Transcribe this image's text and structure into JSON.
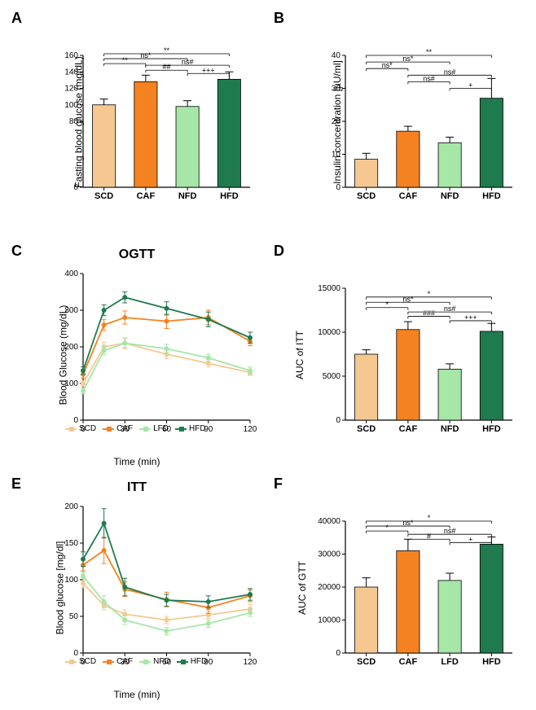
{
  "colors": {
    "SCD": "#f5c892",
    "CAF": "#f58220",
    "NFD": "#a6e6a6",
    "LFD": "#a6e6a6",
    "HFD": "#1f7a4d",
    "axis": "#000000",
    "bg": "#ffffff"
  },
  "categories": [
    "SCD",
    "CAF",
    "NFD",
    "HFD"
  ],
  "categories_F": [
    "SCD",
    "CAF",
    "LFD",
    "HFD"
  ],
  "panelA": {
    "label": "A",
    "ylabel": "Fasting blood glucose (mg/dL)",
    "ylim": [
      0,
      160
    ],
    "yticks": [
      0,
      80,
      100,
      120,
      140,
      160
    ],
    "values": [
      100,
      128,
      98,
      131
    ],
    "errors": [
      7,
      8,
      7,
      9
    ],
    "sig": [
      {
        "from": 0,
        "to": 1,
        "y": 150,
        "text": "**"
      },
      {
        "from": 0,
        "to": 2,
        "y": 156,
        "text": "ns*"
      },
      {
        "from": 0,
        "to": 3,
        "y": 162,
        "text": "**"
      },
      {
        "from": 1,
        "to": 2,
        "y": 142,
        "text": "##"
      },
      {
        "from": 1,
        "to": 3,
        "y": 148,
        "text": "ns#"
      },
      {
        "from": 2,
        "to": 3,
        "y": 138,
        "text": "+++"
      }
    ]
  },
  "panelB": {
    "label": "B",
    "ylabel": "Insulin concentration [µU/ml]",
    "ylim": [
      0,
      40
    ],
    "yticks": [
      0,
      10,
      20,
      30,
      40
    ],
    "values": [
      8.5,
      17,
      13.5,
      27
    ],
    "errors": [
      1.8,
      1.5,
      1.7,
      6
    ],
    "sig": [
      {
        "from": 0,
        "to": 1,
        "y": 36,
        "text": "ns*"
      },
      {
        "from": 0,
        "to": 2,
        "y": 38,
        "text": "ns*"
      },
      {
        "from": 0,
        "to": 3,
        "y": 40,
        "text": "**"
      },
      {
        "from": 1,
        "to": 2,
        "y": 32,
        "text": "ns#"
      },
      {
        "from": 1,
        "to": 3,
        "y": 34,
        "text": "ns#"
      },
      {
        "from": 2,
        "to": 3,
        "y": 30,
        "text": "+"
      }
    ]
  },
  "panelC": {
    "label": "C",
    "title": "OGTT",
    "ylabel": "Blood Glucose (mg/dL)",
    "xlabel": "Time (min)",
    "xlim": [
      0,
      120
    ],
    "xticks": [
      0,
      30,
      60,
      90,
      120
    ],
    "ylim": [
      0,
      400
    ],
    "yticks": [
      0,
      100,
      200,
      300,
      400
    ],
    "series": {
      "SCD": {
        "x": [
          0,
          15,
          30,
          60,
          90,
          120
        ],
        "y": [
          100,
          200,
          210,
          180,
          155,
          130
        ],
        "err": [
          8,
          12,
          15,
          12,
          10,
          8
        ]
      },
      "CAF": {
        "x": [
          0,
          15,
          30,
          60,
          90,
          120
        ],
        "y": [
          125,
          260,
          280,
          270,
          280,
          215
        ],
        "err": [
          10,
          15,
          18,
          20,
          20,
          12
        ]
      },
      "LFD": {
        "x": [
          0,
          15,
          30,
          60,
          90,
          120
        ],
        "y": [
          80,
          190,
          210,
          195,
          170,
          135
        ],
        "err": [
          8,
          12,
          12,
          12,
          10,
          10
        ]
      },
      "HFD": {
        "x": [
          0,
          15,
          30,
          60,
          90,
          120
        ],
        "y": [
          135,
          300,
          335,
          305,
          275,
          225
        ],
        "err": [
          10,
          15,
          15,
          18,
          20,
          15
        ]
      }
    },
    "legend": [
      "SCD",
      "CAF",
      "LFD",
      "HFD"
    ]
  },
  "panelD": {
    "label": "D",
    "ylabel": "AUC of ITT",
    "ylim": [
      0,
      15000
    ],
    "yticks": [
      0,
      5000,
      10000,
      15000
    ],
    "values": [
      7500,
      10300,
      5800,
      10100
    ],
    "errors": [
      500,
      900,
      600,
      900
    ],
    "sig": [
      {
        "from": 0,
        "to": 1,
        "y": 12800,
        "text": "*"
      },
      {
        "from": 0,
        "to": 2,
        "y": 13400,
        "text": "ns*"
      },
      {
        "from": 0,
        "to": 3,
        "y": 14000,
        "text": "*"
      },
      {
        "from": 1,
        "to": 2,
        "y": 11800,
        "text": "###"
      },
      {
        "from": 1,
        "to": 3,
        "y": 12300,
        "text": "ns#"
      },
      {
        "from": 2,
        "to": 3,
        "y": 11300,
        "text": "+++"
      }
    ]
  },
  "panelE": {
    "label": "E",
    "title": "ITT",
    "ylabel": "Blood glucose [mg/dl]",
    "xlabel": "Time (min)",
    "xlim": [
      0,
      120
    ],
    "xticks": [
      0,
      30,
      60,
      90,
      120
    ],
    "ylim": [
      0,
      200
    ],
    "yticks": [
      0,
      50,
      100,
      150,
      200
    ],
    "series": {
      "SCD": {
        "x": [
          0,
          15,
          30,
          60,
          90,
          120
        ],
        "y": [
          95,
          65,
          53,
          45,
          52,
          60
        ],
        "err": [
          6,
          6,
          6,
          5,
          5,
          6
        ]
      },
      "CAF": {
        "x": [
          0,
          15,
          30,
          60,
          90,
          120
        ],
        "y": [
          120,
          140,
          87,
          73,
          62,
          78
        ],
        "err": [
          8,
          18,
          10,
          10,
          8,
          8
        ]
      },
      "NFD": {
        "x": [
          0,
          15,
          30,
          60,
          90,
          120
        ],
        "y": [
          105,
          70,
          45,
          30,
          40,
          55
        ],
        "err": [
          6,
          8,
          6,
          5,
          5,
          5
        ]
      },
      "HFD": {
        "x": [
          0,
          15,
          30,
          60,
          90,
          120
        ],
        "y": [
          128,
          177,
          90,
          72,
          70,
          80
        ],
        "err": [
          10,
          20,
          12,
          8,
          8,
          8
        ]
      }
    },
    "legend": [
      "SCD",
      "CAF",
      "NFD",
      "HFD"
    ]
  },
  "panelF": {
    "label": "F",
    "ylabel": "AUC of GTT",
    "ylim": [
      0,
      40000
    ],
    "yticks": [
      0,
      10000,
      20000,
      30000,
      40000
    ],
    "values": [
      20000,
      31000,
      22000,
      33000
    ],
    "errors": [
      2800,
      3500,
      2200,
      2200
    ],
    "sig": [
      {
        "from": 0,
        "to": 1,
        "y": 37000,
        "text": "*"
      },
      {
        "from": 0,
        "to": 2,
        "y": 38500,
        "text": "ns*"
      },
      {
        "from": 0,
        "to": 3,
        "y": 40000,
        "text": "*"
      },
      {
        "from": 1,
        "to": 2,
        "y": 34500,
        "text": "#"
      },
      {
        "from": 1,
        "to": 3,
        "y": 36000,
        "text": "ns#"
      },
      {
        "from": 2,
        "to": 3,
        "y": 33500,
        "text": "+"
      }
    ]
  },
  "bar_width": 0.55,
  "font": {
    "axis_label": 12,
    "tick": 10,
    "title": 16,
    "panel_label": 18
  }
}
